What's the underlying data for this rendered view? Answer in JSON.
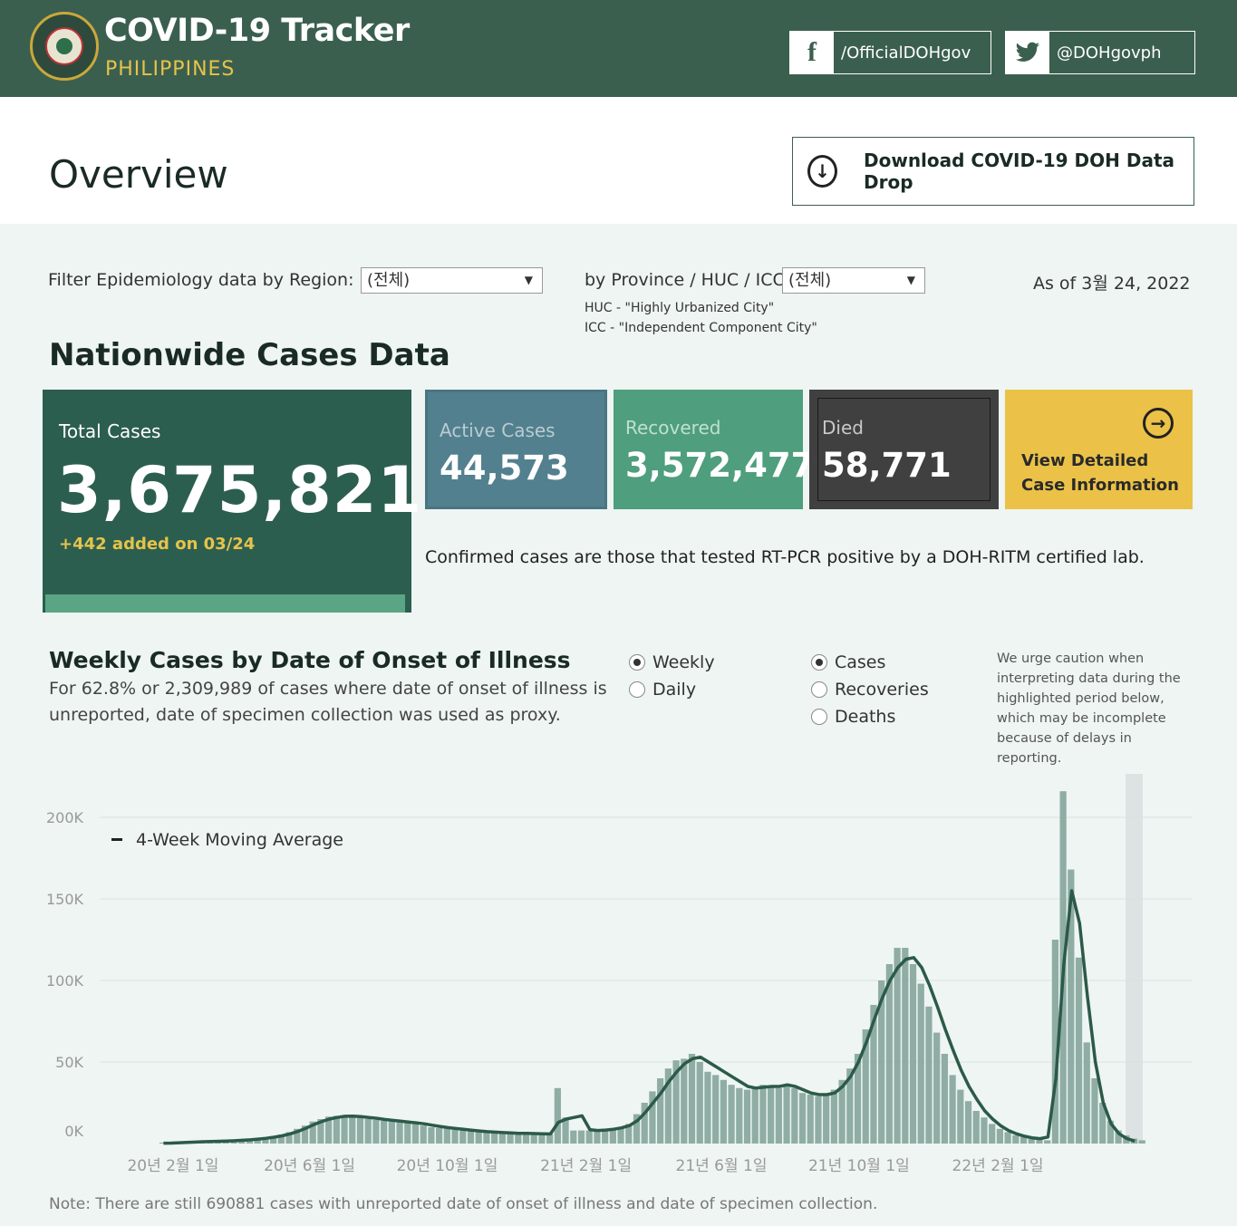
{
  "header": {
    "title": "COVID-19 Tracker",
    "subtitle": "PHILIPPINES",
    "facebook": "/OfficialDOHgov",
    "twitter": "@DOHgovph",
    "facebook_icon": "facebook-icon",
    "twitter_icon": "twitter-icon"
  },
  "overview": {
    "title": "Overview",
    "download_label": "Download COVID-19 DOH Data Drop"
  },
  "filters": {
    "region_label": "Filter Epidemiology data by Region:",
    "region_value": "(전체)",
    "province_label": "by Province / HUC / ICC:",
    "province_value": "(전체)",
    "huc_note": "HUC - \"Highly Urbanized City\"",
    "icc_note": "ICC - \"Independent Component City\"",
    "as_of": "As of 3월 24, 2022"
  },
  "nationwide": {
    "title": "Nationwide Cases Data",
    "total_label": "Total Cases",
    "total_value": "3,675,821",
    "added": "+442 added on 03/24",
    "active_label": "Active Cases",
    "active_value": "44,573",
    "recovered_label": "Recovered",
    "recovered_value": "3,572,477",
    "died_label": "Died",
    "died_value": "58,771",
    "detail_label_1": "View Detailed",
    "detail_label_2": "Case Information",
    "confirmed_note": "Confirmed cases are those that tested RT-PCR positive by a DOH-RITM certified lab."
  },
  "weekly": {
    "title": "Weekly Cases by Date of Onset of Illness",
    "desc_1": "For 62.8% or 2,309,989 of cases where date of onset of illness is",
    "desc_2": "unreported, date of specimen collection was used as proxy.",
    "period_options": [
      {
        "label": "Weekly",
        "selected": true
      },
      {
        "label": "Daily",
        "selected": false
      }
    ],
    "metric_options": [
      {
        "label": "Cases",
        "selected": true
      },
      {
        "label": "Recoveries",
        "selected": false
      },
      {
        "label": "Deaths",
        "selected": false
      }
    ],
    "caution": [
      "We urge caution when",
      "interpreting data during the",
      "highlighted period below,",
      "which may be incomplete",
      "because of delays in",
      "reporting."
    ],
    "note": "Note: There are still 690881 cases with unreported date of onset of illness and date of specimen collection."
  },
  "colors": {
    "header_bg": "#3b5f4f",
    "total_card": "#2c5e4f",
    "active_card": "#52808e",
    "recovered_card": "#4f9e7e",
    "died_card": "#404040",
    "detail_card": "#ebc247",
    "bar": "#8fada4",
    "moving_avg": "#2c5a48"
  },
  "chart_data": {
    "type": "bar",
    "x_unit": "week",
    "x_start": "2020-01-20",
    "ylim": [
      0,
      220000
    ],
    "y_ticks": [
      "0K",
      "50K",
      "100K",
      "150K",
      "200K"
    ],
    "y_tick_values": [
      0,
      50000,
      100000,
      150000,
      200000
    ],
    "x_tick_labels": [
      "20년 2월 1일",
      "20년 6월 1일",
      "20년 10월 1일",
      "21년 2월 1일",
      "21년 6월 1일",
      "21년 10월 1일",
      "22년 2월 1일"
    ],
    "x_tick_dates": [
      "2020-02-01",
      "2020-06-01",
      "2020-10-01",
      "2021-02-01",
      "2021-06-01",
      "2021-10-01",
      "2022-02-01"
    ],
    "legend": "4-Week Moving Average",
    "series": [
      {
        "name": "Cases",
        "values": [
          200,
          500,
          800,
          1000,
          1200,
          1400,
          1500,
          1600,
          1800,
          2000,
          2300,
          2700,
          3200,
          3800,
          4500,
          5500,
          7000,
          9000,
          11000,
          13500,
          15000,
          16500,
          17000,
          17500,
          17000,
          16000,
          15000,
          14500,
          14000,
          13500,
          13000,
          12500,
          12000,
          11000,
          10000,
          9500,
          9000,
          8500,
          8000,
          7500,
          7000,
          6800,
          6600,
          6400,
          6200,
          6000,
          6000,
          6000,
          6000,
          5800,
          34000,
          16000,
          8000,
          8000,
          8000,
          8000,
          8500,
          9000,
          10000,
          12000,
          18000,
          25000,
          32000,
          40000,
          46000,
          51000,
          52000,
          55000,
          50000,
          44000,
          42000,
          39000,
          36000,
          34000,
          33000,
          34000,
          36000,
          35000,
          34000,
          36000,
          34000,
          31000,
          30000,
          29000,
          30000,
          33000,
          39000,
          46000,
          55000,
          70000,
          85000,
          100000,
          110000,
          120000,
          120000,
          110000,
          98000,
          84000,
          68000,
          55000,
          42000,
          33000,
          26000,
          20000,
          16000,
          12000,
          9000,
          7000,
          5000,
          4000,
          3000,
          2500,
          2000,
          125000,
          216000,
          168000,
          114000,
          62000,
          40000,
          25000,
          14000,
          8000,
          5000,
          3000,
          2000
        ]
      },
      {
        "name": "4-Week Moving Average",
        "values": [
          200,
          300,
          500,
          700,
          900,
          1100,
          1250,
          1400,
          1550,
          1750,
          2000,
          2300,
          2700,
          3200,
          3900,
          4700,
          5900,
          7400,
          9300,
          11500,
          13400,
          15000,
          16000,
          16700,
          16800,
          16500,
          16000,
          15500,
          14800,
          14200,
          13700,
          13200,
          12700,
          12100,
          11300,
          10500,
          9800,
          9200,
          8700,
          8200,
          7700,
          7300,
          7000,
          6700,
          6500,
          6300,
          6200,
          6100,
          6000,
          5900,
          13000,
          15000,
          16000,
          17000,
          8500,
          8000,
          8300,
          8800,
          9600,
          11000,
          14000,
          19000,
          25000,
          31000,
          38000,
          44000,
          49000,
          52000,
          53000,
          50000,
          47000,
          44000,
          41000,
          38000,
          35000,
          34000,
          34500,
          35000,
          35000,
          36000,
          35000,
          33000,
          31000,
          30000,
          30000,
          31000,
          35000,
          41000,
          50000,
          62000,
          76000,
          89000,
          100000,
          108000,
          113000,
          114000,
          108000,
          97000,
          84000,
          70000,
          57000,
          45000,
          35000,
          27000,
          20000,
          15000,
          11000,
          8000,
          6000,
          4500,
          3500,
          3000,
          4000,
          40000,
          110000,
          155000,
          135000,
          90000,
          50000,
          25000,
          12000,
          6000,
          3000,
          1500
        ]
      }
    ]
  }
}
